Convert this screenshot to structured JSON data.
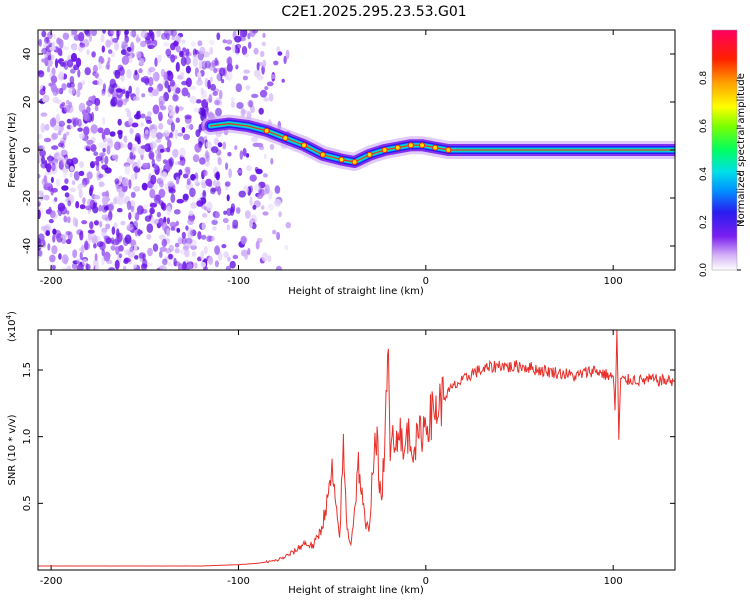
{
  "title": "C2E1.2025.295.23.53.G01",
  "chart_data": [
    {
      "type": "heatmap",
      "xlabel": "Height of straight line (km)",
      "ylabel": "Frequency (Hz)",
      "xlim": [
        -207,
        133
      ],
      "ylim": [
        -50,
        50
      ],
      "xticks": [
        -200,
        -100,
        0,
        100
      ],
      "xtick_labels": [
        "-200",
        "-100",
        "0",
        "100"
      ],
      "yticks": [
        -40,
        -20,
        0,
        20,
        40
      ],
      "ytick_labels": [
        "-40",
        "-20",
        "0",
        "20",
        "40"
      ],
      "noise_region_x": [
        -207,
        -85
      ],
      "ridge": {
        "x": [
          -115,
          -105,
          -95,
          -85,
          -75,
          -65,
          -55,
          -45,
          -38,
          -30,
          -22,
          -15,
          -8,
          -2,
          5,
          12,
          30,
          60,
          100,
          133
        ],
        "freq": [
          10,
          11,
          10,
          8,
          5,
          2,
          -2,
          -4,
          -5,
          -2,
          0,
          1,
          2,
          2,
          1,
          0,
          0,
          0,
          0,
          0
        ]
      },
      "colorbar": {
        "label": "Normalized spectral amplitude",
        "range": [
          0,
          1
        ],
        "ticks": [
          0.0,
          0.2,
          0.4,
          0.6,
          0.8
        ],
        "tick_labels": [
          "0.0",
          "0.2",
          "0.4",
          "0.6",
          "0.8"
        ]
      }
    },
    {
      "type": "line",
      "xlabel": "Height of straight line (km)",
      "ylabel": "SNR (10 * v/v)",
      "y_multiplier": "(x10",
      "y_multiplier_exp": "4",
      "xlim": [
        -207,
        133
      ],
      "ylim": [
        0,
        1.8
      ],
      "xticks": [
        -200,
        -100,
        0,
        100
      ],
      "xtick_labels": [
        "-200",
        "-100",
        "0",
        "100"
      ],
      "yticks": [
        0.5,
        1.0,
        1.5
      ],
      "ytick_labels": [
        "0.5",
        "1.0",
        "1.5"
      ],
      "series": [
        {
          "name": "SNR",
          "color": "#e8302a",
          "x": [
            -207,
            -180,
            -150,
            -120,
            -100,
            -90,
            -80,
            -75,
            -70,
            -65,
            -60,
            -56,
            -52,
            -50,
            -48,
            -46,
            -45,
            -44,
            -42,
            -40,
            -38,
            -36,
            -34,
            -32,
            -30,
            -28,
            -26,
            -24,
            -22,
            -20,
            -19,
            -18,
            -16,
            -14,
            -12,
            -10,
            -8,
            -5,
            -2,
            0,
            5,
            10,
            15,
            20,
            25,
            30,
            35,
            40,
            45,
            50,
            55,
            60,
            65,
            70,
            75,
            80,
            85,
            90,
            95,
            100,
            101,
            102,
            103,
            104,
            106,
            110,
            115,
            120,
            125,
            133
          ],
          "y": [
            0.03,
            0.03,
            0.03,
            0.03,
            0.04,
            0.05,
            0.07,
            0.1,
            0.14,
            0.2,
            0.18,
            0.3,
            0.55,
            0.75,
            0.45,
            0.25,
            0.6,
            0.9,
            0.3,
            0.2,
            0.45,
            0.8,
            0.55,
            0.3,
            0.35,
            0.85,
            0.95,
            0.5,
            0.9,
            1.6,
            0.8,
            1.2,
            0.9,
            1.15,
            0.8,
            1.05,
            0.95,
            0.95,
            1.05,
            1.1,
            1.2,
            1.3,
            1.38,
            1.42,
            1.48,
            1.5,
            1.52,
            1.54,
            1.52,
            1.53,
            1.52,
            1.5,
            1.49,
            1.48,
            1.47,
            1.45,
            1.48,
            1.5,
            1.47,
            1.45,
            1.2,
            1.8,
            0.98,
            1.43,
            1.42,
            1.43,
            1.42,
            1.43,
            1.42,
            1.42
          ]
        }
      ]
    }
  ]
}
